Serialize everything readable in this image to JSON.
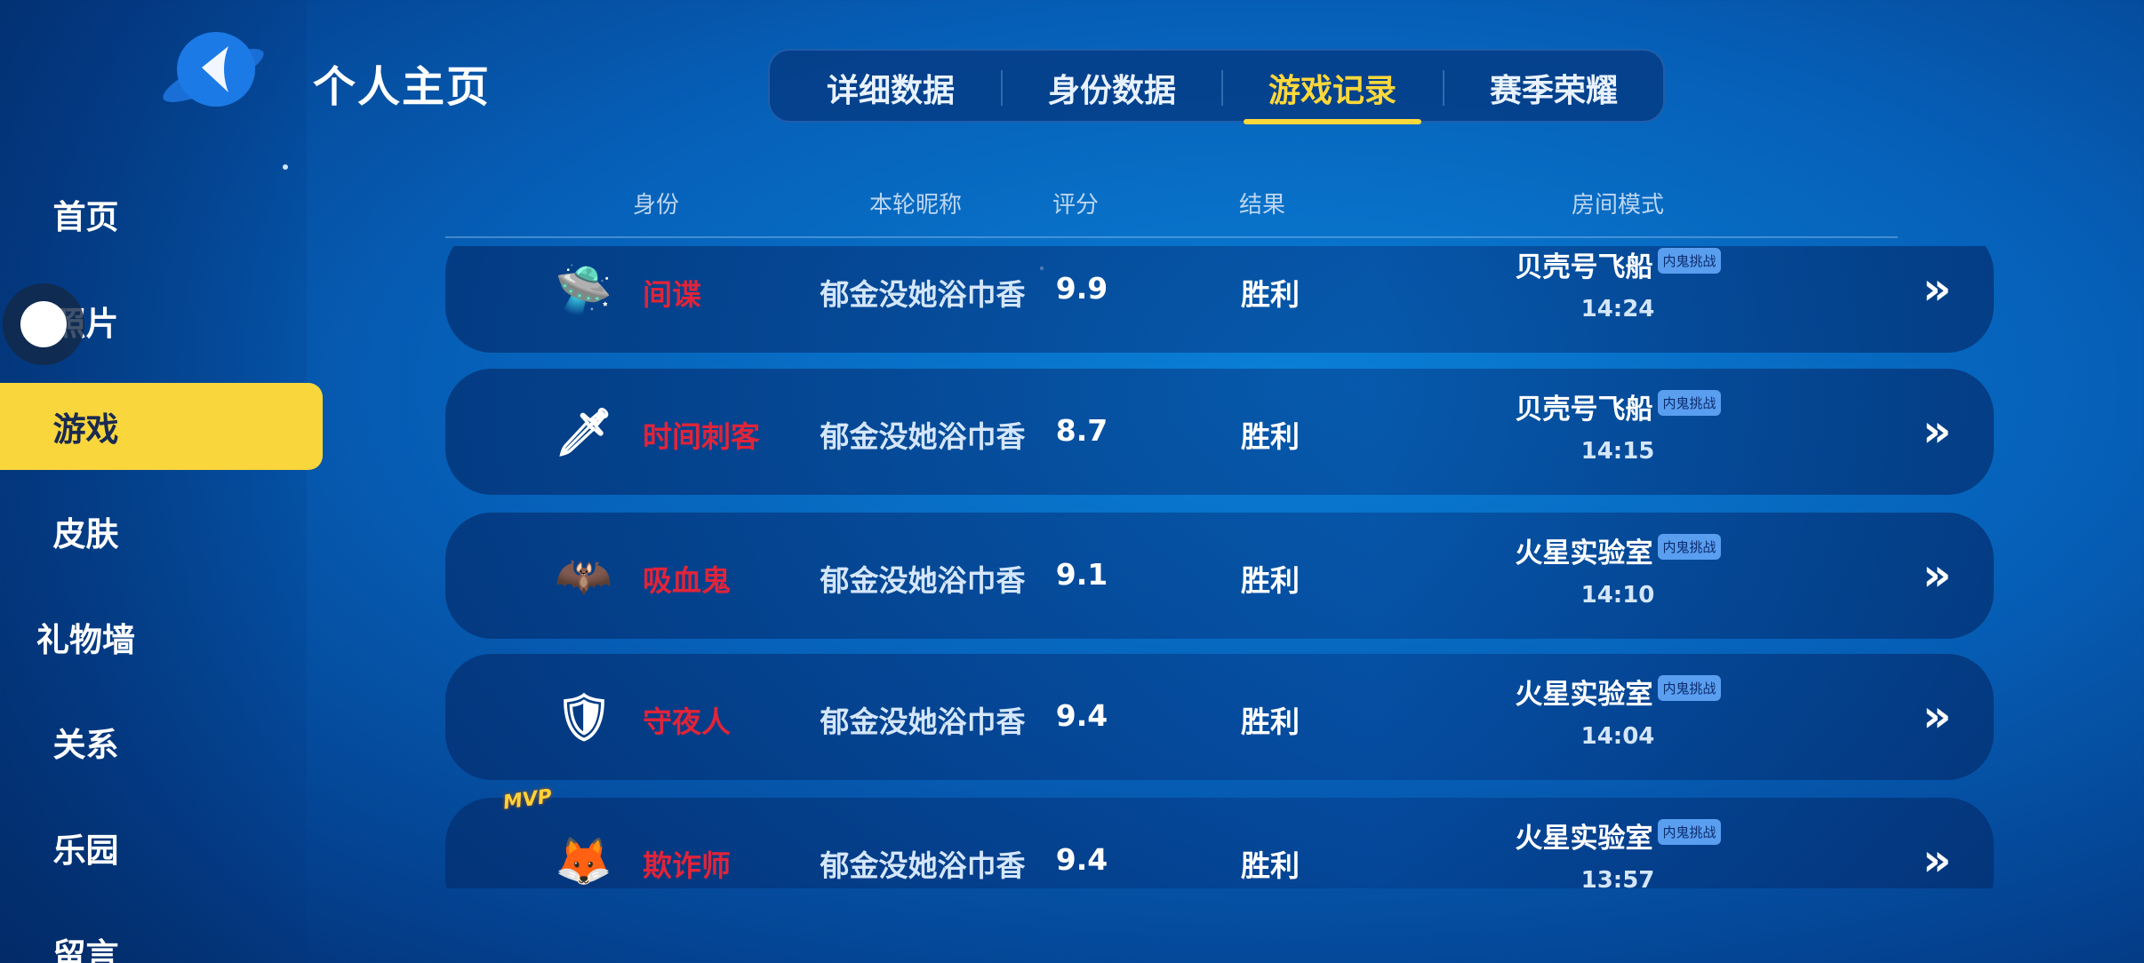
{
  "header": {
    "title": "个人主页",
    "back_icon": "back-planet-icon"
  },
  "sidebar": {
    "active": 2,
    "items": [
      {
        "label": "首页"
      },
      {
        "label": "照片"
      },
      {
        "label": "游戏"
      },
      {
        "label": "皮肤"
      },
      {
        "label": "礼物墙"
      },
      {
        "label": "关系"
      },
      {
        "label": "乐园"
      },
      {
        "label": "留言"
      }
    ]
  },
  "tabs": {
    "active": 2,
    "items": [
      {
        "label": "详细数据"
      },
      {
        "label": "身份数据"
      },
      {
        "label": "游戏记录"
      },
      {
        "label": "赛季荣耀"
      }
    ]
  },
  "table": {
    "columns": [
      "身份",
      "本轮昵称",
      "评分",
      "结果",
      "房间模式"
    ],
    "rows": [
      {
        "icon": "ufo-hat-icon",
        "mvp": "",
        "role": "间谍",
        "nickname": "郁金没她浴巾香",
        "score": "9.9",
        "result": "胜利",
        "room": "贝壳号飞船",
        "badge": "内鬼挑战",
        "time": "14:24"
      },
      {
        "icon": "sword-clock-icon",
        "mvp": "",
        "role": "时间刺客",
        "nickname": "郁金没她浴巾香",
        "score": "8.7",
        "result": "胜利",
        "room": "贝壳号飞船",
        "badge": "内鬼挑战",
        "time": "14:15"
      },
      {
        "icon": "bat-icon",
        "mvp": "",
        "role": "吸血鬼",
        "nickname": "郁金没她浴巾香",
        "score": "9.1",
        "result": "胜利",
        "room": "火星实验室",
        "badge": "内鬼挑战",
        "time": "14:10"
      },
      {
        "icon": "owl-shield-icon",
        "mvp": "",
        "role": "守夜人",
        "nickname": "郁金没她浴巾香",
        "score": "9.4",
        "result": "胜利",
        "room": "火星实验室",
        "badge": "内鬼挑战",
        "time": "14:04"
      },
      {
        "icon": "fox-tail-icon",
        "mvp": "MVP",
        "role": "欺诈师",
        "nickname": "郁金没她浴巾香",
        "score": "9.4",
        "result": "胜利",
        "room": "火星实验室",
        "badge": "内鬼挑战",
        "time": "13:57"
      }
    ]
  },
  "colors": {
    "accent": "#f8d63c",
    "role_text": "#e0243a",
    "badge": "#5a9ef0"
  }
}
